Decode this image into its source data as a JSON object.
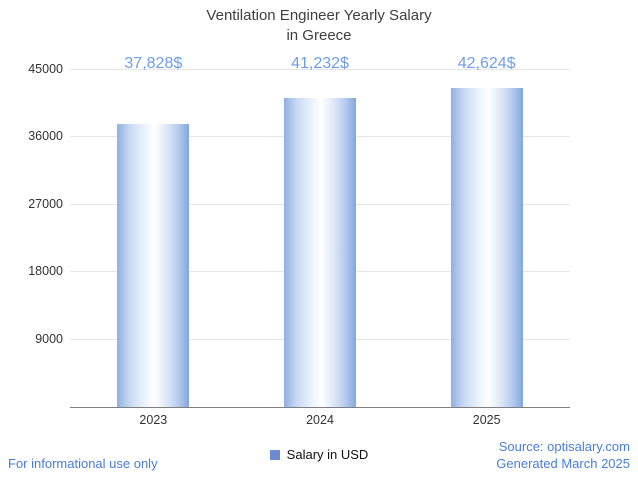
{
  "title_line1": "Ventilation Engineer Yearly Salary",
  "title_line2": "in Greece",
  "chart_data": {
    "type": "bar",
    "title": "Ventilation Engineer Yearly Salary in Greece",
    "categories": [
      "2023",
      "2024",
      "2025"
    ],
    "values": [
      37828,
      41232,
      42624
    ],
    "value_labels": [
      "37,828$",
      "41,232$",
      "42,624$"
    ],
    "ylim": [
      0,
      45000
    ],
    "yticks": [
      9000,
      18000,
      27000,
      36000,
      45000
    ],
    "grid": true,
    "legend": {
      "label": "Salary in USD",
      "position": "bottom"
    },
    "colors": {
      "value_label": "#6d9eeb",
      "legend_swatch": "#6d8bd3",
      "gridline": "#e6e6e6",
      "axis": "#7f7f7f",
      "title": "#3f3f3f",
      "footer": "#4a7ed8"
    }
  },
  "footer": {
    "disclaimer": "For informational use only",
    "source": "Source: optisalary.com",
    "generated": "Generated March 2025"
  }
}
